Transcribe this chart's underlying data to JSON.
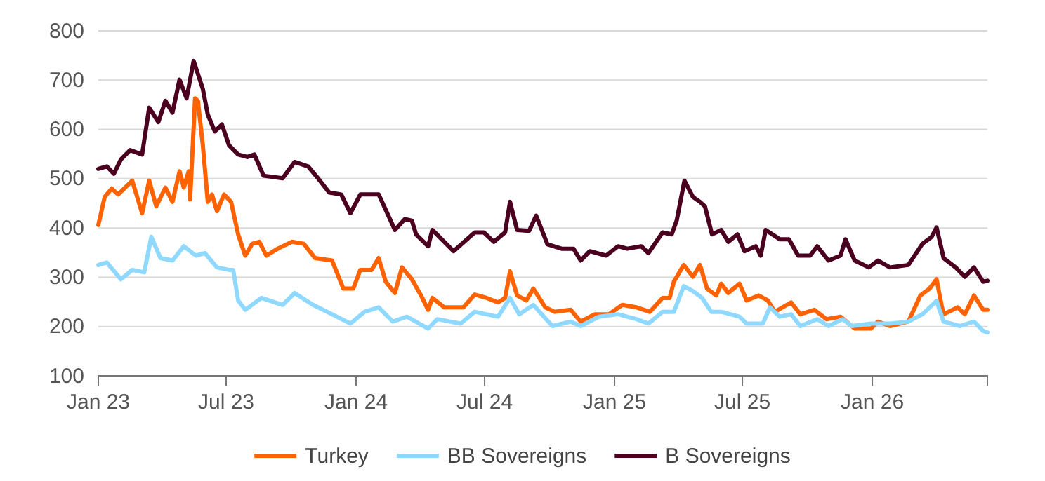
{
  "chart_data": {
    "type": "line",
    "xlim": [
      "2023-01-01",
      "2026-06-13"
    ],
    "ylim": [
      100,
      800
    ],
    "yticks": [
      100,
      200,
      300,
      400,
      500,
      600,
      700,
      800
    ],
    "xticks": [
      {
        "value": "2023-01-01",
        "label": "Jan 23"
      },
      {
        "value": "2023-07-01",
        "label": "Jul 23"
      },
      {
        "value": "2024-01-01",
        "label": "Jan 24"
      },
      {
        "value": "2024-07-01",
        "label": "Jul 24"
      },
      {
        "value": "2025-01-01",
        "label": "Jan 25"
      },
      {
        "value": "2025-07-01",
        "label": "Jul 25"
      },
      {
        "value": "2026-01-01",
        "label": "Jan 26"
      }
    ],
    "grid": "y",
    "legend": "bottom",
    "marker": "none",
    "line_style": "solid",
    "series": [
      {
        "name": "Turkey",
        "color": "#ff6200",
        "x": [
          "2023-01-01",
          "2023-01-10",
          "2023-01-20",
          "2023-01-29",
          "2023-02-18",
          "2023-03-04",
          "2023-03-14",
          "2023-03-24",
          "2023-04-06",
          "2023-04-16",
          "2023-04-26",
          "2023-05-02",
          "2023-05-09",
          "2023-05-11",
          "2023-05-18",
          "2023-05-22",
          "2023-05-29",
          "2023-06-05",
          "2023-06-11",
          "2023-06-18",
          "2023-06-28",
          "2023-07-08",
          "2023-07-18",
          "2023-07-28",
          "2023-08-07",
          "2023-08-17",
          "2023-08-27",
          "2023-09-12",
          "2023-10-02",
          "2023-10-19",
          "2023-11-04",
          "2023-11-28",
          "2023-12-14",
          "2023-12-28",
          "2024-01-07",
          "2024-01-23",
          "2024-02-02",
          "2024-02-12",
          "2024-02-25",
          "2024-03-06",
          "2024-03-20",
          "2024-04-02",
          "2024-04-12",
          "2024-04-18",
          "2024-05-05",
          "2024-06-01",
          "2024-06-17",
          "2024-07-04",
          "2024-07-20",
          "2024-07-30",
          "2024-08-06",
          "2024-08-16",
          "2024-08-29",
          "2024-09-08",
          "2024-09-25",
          "2024-10-08",
          "2024-10-31",
          "2024-11-14",
          "2024-12-04",
          "2024-12-24",
          "2025-01-12",
          "2025-02-01",
          "2025-02-20",
          "2025-03-10",
          "2025-03-20",
          "2025-03-26",
          "2025-04-09",
          "2025-04-22",
          "2025-05-02",
          "2025-05-12",
          "2025-05-25",
          "2025-06-01",
          "2025-06-11",
          "2025-06-27",
          "2025-07-07",
          "2025-07-24",
          "2025-08-06",
          "2025-08-16",
          "2025-09-08",
          "2025-09-21",
          "2025-10-11",
          "2025-10-28",
          "2025-11-17",
          "2025-12-07",
          "2025-12-30",
          "2026-01-09",
          "2026-01-26",
          "2026-02-21",
          "2026-03-10",
          "2026-03-23",
          "2026-04-02",
          "2026-04-09",
          "2026-04-12",
          "2026-05-02",
          "2026-05-12",
          "2026-05-25",
          "2026-06-07",
          "2026-06-13"
        ],
        "values": [
          406,
          463,
          480,
          468,
          496,
          430,
          496,
          444,
          482,
          453,
          515,
          482,
          515,
          458,
          663,
          658,
          568,
          453,
          468,
          434,
          468,
          453,
          387,
          344,
          368,
          372,
          344,
          358,
          372,
          368,
          339,
          334,
          277,
          277,
          315,
          315,
          339,
          291,
          268,
          320,
          296,
          263,
          234,
          258,
          239,
          239,
          265,
          258,
          249,
          258,
          312,
          263,
          253,
          277,
          239,
          230,
          234,
          210,
          225,
          225,
          244,
          239,
          230,
          258,
          258,
          291,
          325,
          301,
          325,
          277,
          263,
          287,
          268,
          287,
          253,
          263,
          253,
          230,
          249,
          225,
          234,
          215,
          220,
          196,
          196,
          210,
          201,
          210,
          263,
          277,
          296,
          244,
          225,
          239,
          225,
          263,
          234,
          234
        ]
      },
      {
        "name": "BB Sovereigns",
        "color": "#8fd8ff",
        "x": [
          "2023-01-01",
          "2023-01-13",
          "2023-02-02",
          "2023-02-18",
          "2023-03-07",
          "2023-03-17",
          "2023-03-30",
          "2023-04-16",
          "2023-05-02",
          "2023-05-19",
          "2023-06-01",
          "2023-06-18",
          "2023-07-05",
          "2023-07-11",
          "2023-07-18",
          "2023-07-28",
          "2023-08-20",
          "2023-09-19",
          "2023-10-06",
          "2023-11-01",
          "2023-11-28",
          "2023-12-24",
          "2024-01-13",
          "2024-02-02",
          "2024-02-22",
          "2024-03-13",
          "2024-04-12",
          "2024-04-25",
          "2024-05-28",
          "2024-06-17",
          "2024-07-20",
          "2024-08-06",
          "2024-08-19",
          "2024-09-08",
          "2024-10-05",
          "2024-10-31",
          "2024-11-14",
          "2024-12-10",
          "2025-01-06",
          "2025-02-01",
          "2025-02-18",
          "2025-03-10",
          "2025-03-26",
          "2025-04-09",
          "2025-04-22",
          "2025-05-05",
          "2025-05-18",
          "2025-06-01",
          "2025-06-27",
          "2025-07-07",
          "2025-07-30",
          "2025-08-09",
          "2025-08-23",
          "2025-09-08",
          "2025-09-21",
          "2025-10-15",
          "2025-10-31",
          "2025-11-20",
          "2025-12-03",
          "2025-12-30",
          "2026-01-26",
          "2026-02-21",
          "2026-03-13",
          "2026-04-02",
          "2026-04-12",
          "2026-05-05",
          "2026-05-25",
          "2026-06-07",
          "2026-06-13"
        ],
        "values": [
          325,
          330,
          296,
          315,
          310,
          382,
          339,
          334,
          363,
          344,
          349,
          320,
          315,
          315,
          253,
          234,
          258,
          244,
          268,
          244,
          225,
          206,
          230,
          239,
          210,
          220,
          196,
          215,
          206,
          230,
          220,
          258,
          225,
          244,
          201,
          210,
          201,
          220,
          225,
          215,
          206,
          230,
          230,
          282,
          272,
          258,
          230,
          230,
          220,
          206,
          206,
          239,
          220,
          225,
          201,
          215,
          201,
          215,
          201,
          206,
          206,
          210,
          225,
          252,
          210,
          201,
          210,
          191,
          188
        ]
      },
      {
        "name": "B Sovereigns",
        "color": "#4b0020",
        "x": [
          "2023-01-01",
          "2023-01-13",
          "2023-01-23",
          "2023-02-02",
          "2023-02-15",
          "2023-03-04",
          "2023-03-14",
          "2023-03-27",
          "2023-04-06",
          "2023-04-16",
          "2023-04-26",
          "2023-05-06",
          "2023-05-16",
          "2023-05-29",
          "2023-06-05",
          "2023-06-15",
          "2023-06-25",
          "2023-07-05",
          "2023-07-18",
          "2023-07-31",
          "2023-08-10",
          "2023-08-23",
          "2023-09-19",
          "2023-10-06",
          "2023-10-25",
          "2023-11-08",
          "2023-11-24",
          "2023-12-11",
          "2023-12-24",
          "2024-01-07",
          "2024-02-02",
          "2024-02-25",
          "2024-03-10",
          "2024-03-20",
          "2024-03-26",
          "2024-04-12",
          "2024-04-18",
          "2024-05-18",
          "2024-06-17",
          "2024-06-30",
          "2024-07-14",
          "2024-07-30",
          "2024-08-06",
          "2024-08-16",
          "2024-09-02",
          "2024-09-12",
          "2024-09-28",
          "2024-10-18",
          "2024-11-04",
          "2024-11-14",
          "2024-11-27",
          "2024-12-20",
          "2025-01-06",
          "2025-01-19",
          "2025-02-08",
          "2025-02-18",
          "2025-03-10",
          "2025-03-23",
          "2025-03-30",
          "2025-04-10",
          "2025-04-22",
          "2025-05-02",
          "2025-05-09",
          "2025-05-19",
          "2025-06-01",
          "2025-06-11",
          "2025-06-24",
          "2025-07-04",
          "2025-07-20",
          "2025-07-27",
          "2025-08-03",
          "2025-08-23",
          "2025-09-05",
          "2025-09-18",
          "2025-10-05",
          "2025-10-15",
          "2025-10-31",
          "2025-11-17",
          "2025-11-24",
          "2025-12-07",
          "2025-12-27",
          "2026-01-09",
          "2026-01-26",
          "2026-02-21",
          "2026-03-13",
          "2026-03-26",
          "2026-04-02",
          "2026-04-12",
          "2026-04-29",
          "2026-05-12",
          "2026-05-25",
          "2026-06-07",
          "2026-06-13"
        ],
        "values": [
          520,
          525,
          510,
          539,
          558,
          549,
          644,
          615,
          658,
          634,
          701,
          663,
          739,
          682,
          630,
          596,
          610,
          568,
          549,
          544,
          549,
          506,
          501,
          534,
          525,
          501,
          472,
          468,
          430,
          468,
          468,
          396,
          418,
          415,
          387,
          363,
          396,
          353,
          391,
          391,
          372,
          391,
          453,
          396,
          394,
          425,
          367,
          358,
          358,
          334,
          353,
          344,
          363,
          358,
          363,
          349,
          391,
          387,
          415,
          496,
          463,
          453,
          444,
          387,
          396,
          372,
          387,
          353,
          363,
          344,
          396,
          377,
          377,
          344,
          344,
          363,
          334,
          344,
          377,
          334,
          320,
          334,
          320,
          325,
          368,
          382,
          401,
          339,
          320,
          301,
          320,
          291,
          293
        ]
      }
    ]
  }
}
